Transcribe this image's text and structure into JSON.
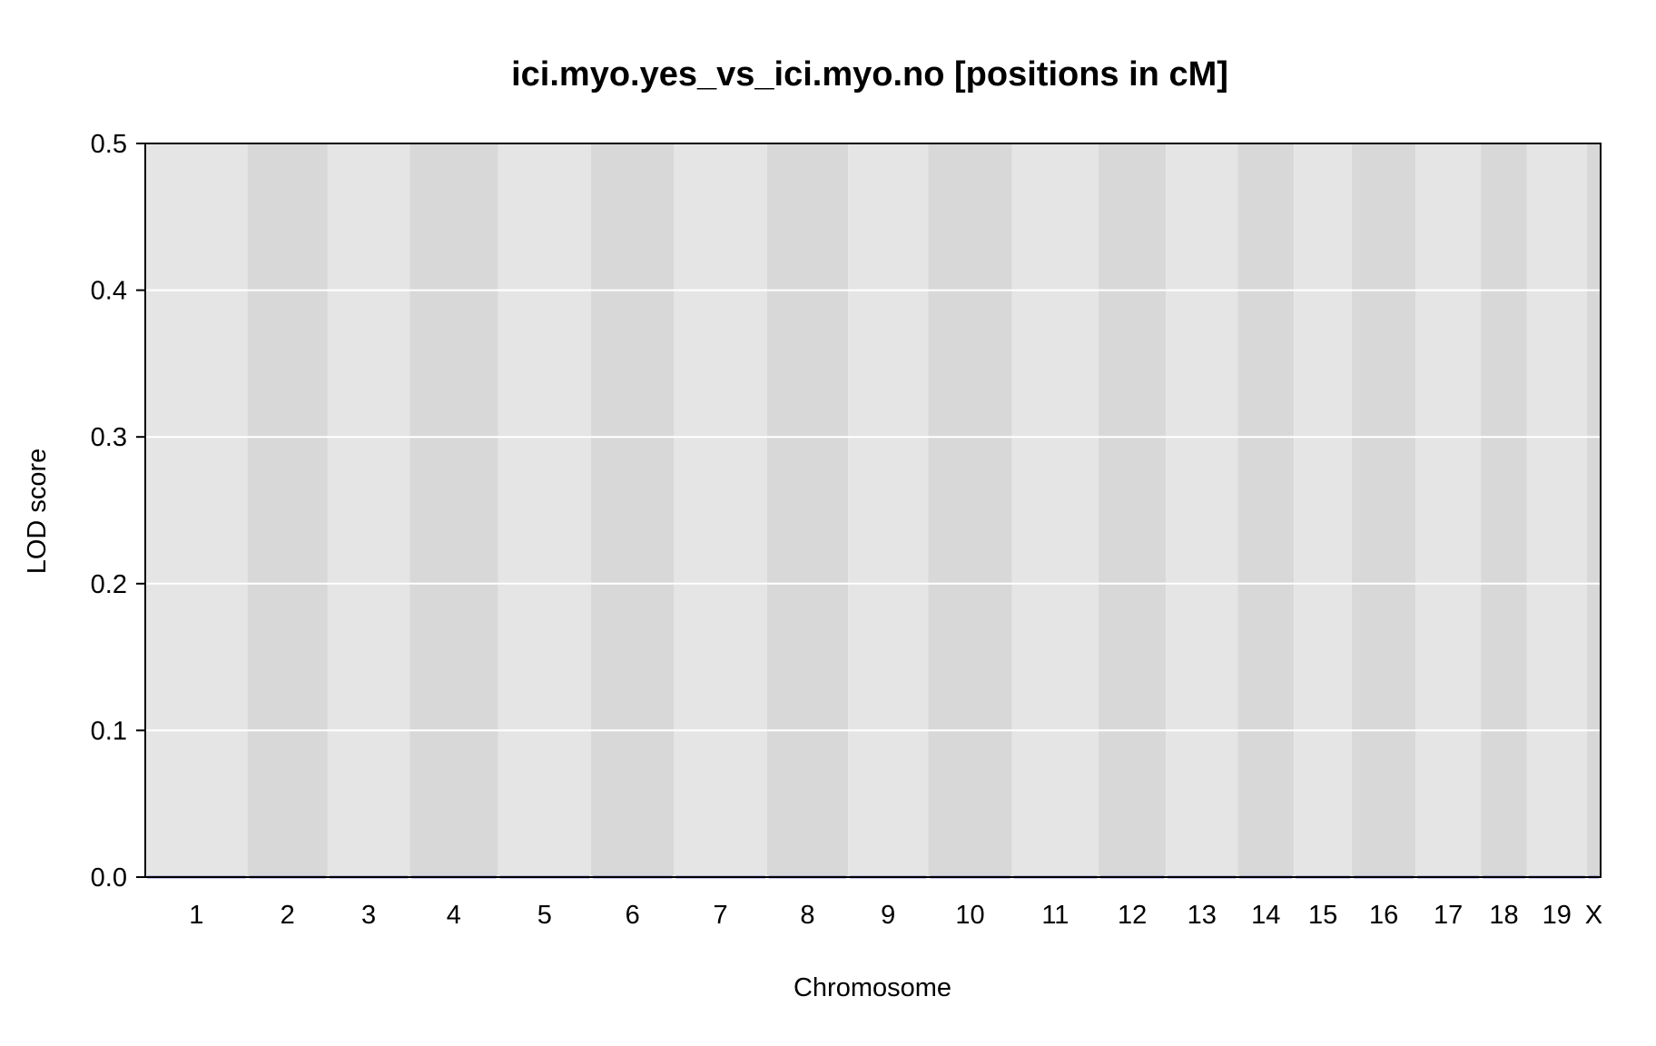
{
  "chart_data": {
    "type": "line",
    "title": "ici.myo.yes_vs_ici.myo.no [positions in cM]",
    "xlabel": "Chromosome",
    "ylabel": "LOD score",
    "ylim": [
      0,
      0.5
    ],
    "yticks": [
      "0.0",
      "0.1",
      "0.2",
      "0.3",
      "0.4",
      "0.5"
    ],
    "grid": true,
    "chromosomes": [
      {
        "name": "1",
        "start": 0,
        "end": 111
      },
      {
        "name": "2",
        "start": 111,
        "end": 198
      },
      {
        "name": "3",
        "start": 198,
        "end": 287
      },
      {
        "name": "4",
        "start": 287,
        "end": 383
      },
      {
        "name": "5",
        "start": 383,
        "end": 484
      },
      {
        "name": "6",
        "start": 484,
        "end": 574
      },
      {
        "name": "7",
        "start": 574,
        "end": 675
      },
      {
        "name": "8",
        "start": 675,
        "end": 763
      },
      {
        "name": "9",
        "start": 763,
        "end": 850
      },
      {
        "name": "10",
        "start": 850,
        "end": 941
      },
      {
        "name": "11",
        "start": 941,
        "end": 1035
      },
      {
        "name": "12",
        "start": 1035,
        "end": 1108
      },
      {
        "name": "13",
        "start": 1108,
        "end": 1186
      },
      {
        "name": "14",
        "start": 1186,
        "end": 1247
      },
      {
        "name": "15",
        "start": 1247,
        "end": 1310
      },
      {
        "name": "16",
        "start": 1310,
        "end": 1379
      },
      {
        "name": "17",
        "start": 1379,
        "end": 1450
      },
      {
        "name": "18",
        "start": 1450,
        "end": 1500
      },
      {
        "name": "19",
        "start": 1500,
        "end": 1565
      },
      {
        "name": "X",
        "start": 1565,
        "end": 1580
      }
    ],
    "series": [
      {
        "values": [
          0,
          0,
          0,
          0,
          0,
          0,
          0,
          0,
          0,
          0,
          0,
          0,
          0,
          0,
          0,
          0,
          0,
          0,
          0,
          0
        ]
      }
    ],
    "colors": {
      "band_light": "#e5e5e5",
      "band_dark": "#d8d8d8",
      "grid": "#ffffff",
      "line": "#1a1aa6"
    }
  }
}
